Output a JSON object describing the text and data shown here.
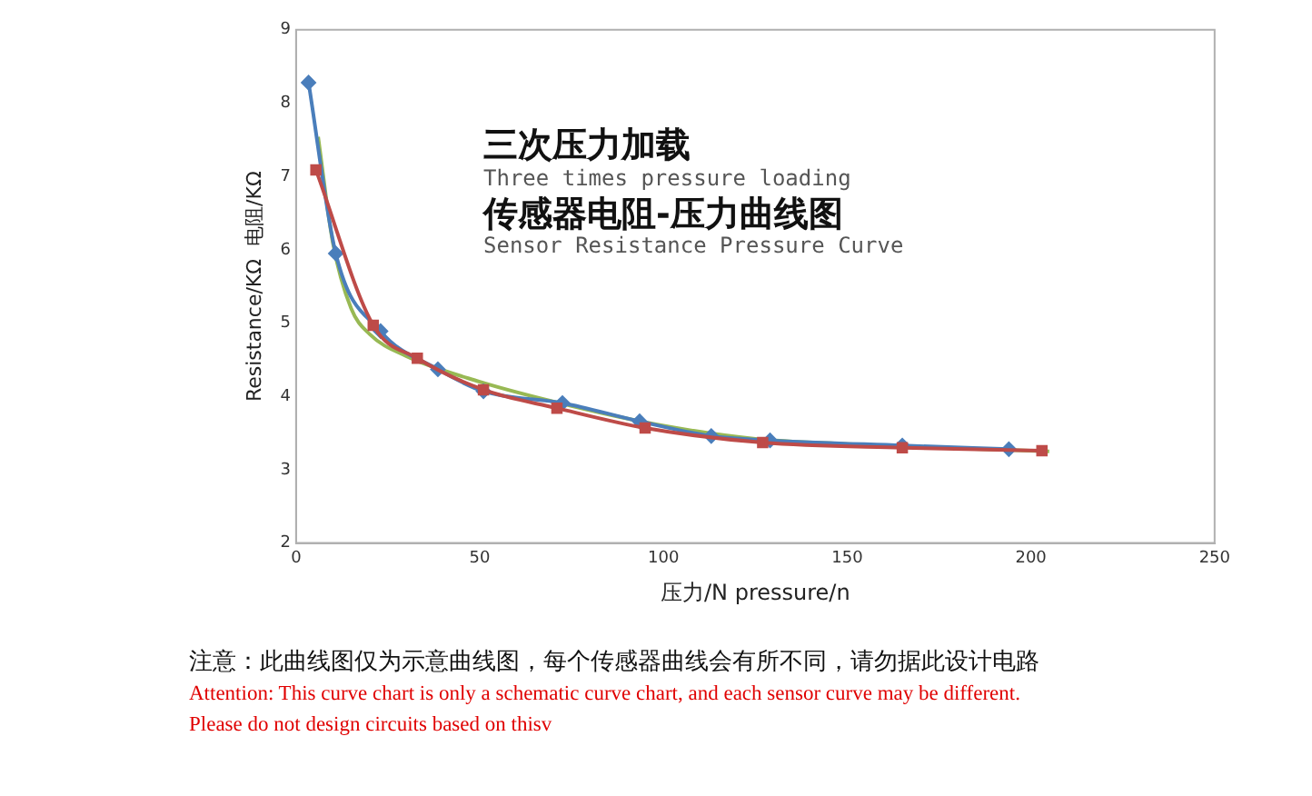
{
  "chart_data": {
    "type": "line",
    "title": "三次压力加载",
    "subtitle": "Three times pressure loading",
    "xlabel": "压力/N pressure/n",
    "ylabel": "Resistance/KΩ  电阻/KΩ",
    "annotations": [
      "传感器电阻-压力曲线图",
      "Sensor Resistance Pressure Curve",
      "注意：此曲线图仅为示意曲线图，每个传感器曲线会有所不同，请勿据此设计电路",
      "Attention: This curve chart is only a schematic curve chart, and each sensor curve may be different.",
      "Please do not design circuits based on thisv"
    ],
    "xlim": [
      0,
      250
    ],
    "xticks": [
      0,
      50,
      100,
      150,
      200,
      250
    ],
    "ylim": [
      2,
      9
    ],
    "yticks": [
      2,
      3,
      4,
      5,
      6,
      7,
      8,
      9
    ],
    "grid": false,
    "legend": false,
    "series": [
      {
        "color": "#4a7ebb",
        "marker": "diamond",
        "x": [
          3.4,
          10.8,
          23,
          38.6,
          51,
          72.5,
          93.5,
          113,
          129,
          165,
          194
        ],
        "values": [
          8.28,
          5.95,
          4.89,
          4.37,
          4.07,
          3.91,
          3.66,
          3.46,
          3.4,
          3.33,
          3.28
        ]
      },
      {
        "color": "#be4b48",
        "marker": "square",
        "x": [
          5.4,
          21,
          33,
          51,
          71,
          95,
          127,
          165,
          203
        ],
        "values": [
          7.09,
          4.97,
          4.52,
          4.09,
          3.84,
          3.57,
          3.37,
          3.3,
          3.26
        ]
      },
      {
        "color": "#98b954",
        "marker": "none",
        "x": [
          6,
          10,
          15,
          20,
          30,
          50,
          75,
          100,
          125,
          150,
          175,
          205
        ],
        "values": [
          7.54,
          6.1,
          5.2,
          4.85,
          4.55,
          4.2,
          3.87,
          3.6,
          3.42,
          3.35,
          3.3,
          3.25
        ]
      }
    ]
  }
}
